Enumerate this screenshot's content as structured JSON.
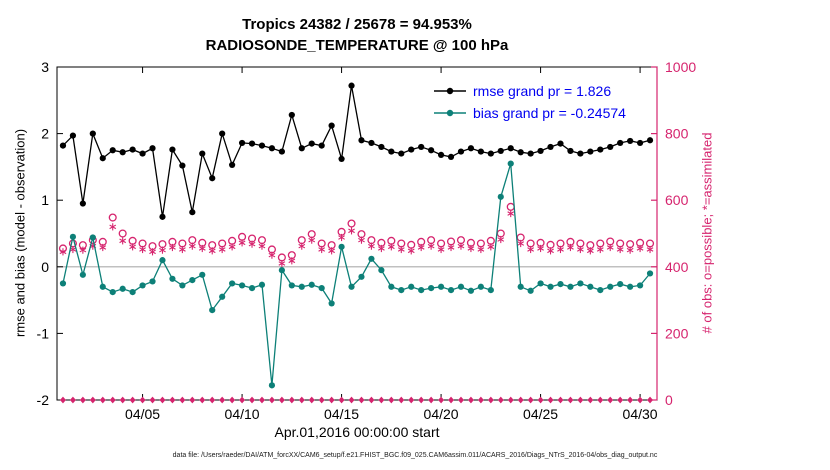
{
  "footer": {
    "text": "data file: /Users/raeder/DAI/ATM_forcXX/CAM6_setup/f.e21.FHIST_BGC.f09_025.CAM6assim.011/ACARS_2016/Diags_NTrS_2016-04/obs_diag_output.nc"
  },
  "chart_data": {
    "type": "line",
    "title": "Tropics 24382 / 25678 = 94.953%",
    "subtitle": "RADIOSONDE_TEMPERATURE @ 100 hPa",
    "xlabel": "Apr.01,2016 00:00:00 start",
    "ylabel_left": "rmse and bias (model - observation)",
    "ylabel_right": "# of obs: o=possible; *=assimilated",
    "xlim": [
      0.7,
      30.85
    ],
    "ylim_left": [
      -2,
      3
    ],
    "ylim_right": [
      0,
      1000
    ],
    "grid": false,
    "zero_line": true,
    "x_ticks": [
      {
        "value": 5,
        "label": "04/05"
      },
      {
        "value": 10,
        "label": "04/10"
      },
      {
        "value": 15,
        "label": "04/15"
      },
      {
        "value": 20,
        "label": "04/20"
      },
      {
        "value": 25,
        "label": "04/25"
      },
      {
        "value": 30,
        "label": "04/30"
      }
    ],
    "yl_ticks": [
      -2,
      -1,
      0,
      1,
      2,
      3
    ],
    "yr_ticks": [
      0,
      200,
      400,
      600,
      800,
      1000
    ],
    "colors": {
      "rmse": "#000000",
      "bias": "#0d8078",
      "obs": "#d6246e",
      "legend_text": "#0000f0",
      "zero_line": "#ababab"
    },
    "x": [
      1,
      1.5,
      2,
      2.5,
      3,
      3.5,
      4,
      4.5,
      5,
      5.5,
      6,
      6.5,
      7,
      7.5,
      8,
      8.5,
      9,
      9.5,
      10,
      10.5,
      11,
      11.5,
      12,
      12.5,
      13,
      13.5,
      14,
      14.5,
      15,
      15.5,
      16,
      16.5,
      17,
      17.5,
      18,
      18.5,
      19,
      19.5,
      20,
      20.5,
      21,
      21.5,
      22,
      22.5,
      23,
      23.5,
      24,
      24.5,
      25,
      25.5,
      26,
      26.5,
      27,
      27.5,
      28,
      28.5,
      29,
      29.5,
      30,
      30.5
    ],
    "series": [
      {
        "name": "obs_baseline_zero",
        "axis": "right",
        "color": "#d6246e",
        "marker": "diamond",
        "line": false,
        "values": [
          0,
          0,
          0,
          0,
          0,
          0,
          0,
          0,
          0,
          0,
          0,
          0,
          0,
          0,
          0,
          0,
          0,
          0,
          0,
          0,
          0,
          0,
          0,
          0,
          0,
          0,
          0,
          0,
          0,
          0,
          0,
          0,
          0,
          0,
          0,
          0,
          0,
          0,
          0,
          0,
          0,
          0,
          0,
          0,
          0,
          0,
          0,
          0,
          0,
          0,
          0,
          0,
          0,
          0,
          0,
          0,
          0,
          0,
          0,
          0
        ]
      },
      {
        "name": "obs_possible",
        "axis": "right",
        "color": "#d6246e",
        "marker": "open-circle",
        "line": false,
        "values": [
          455,
          470,
          465,
          480,
          475,
          548,
          500,
          478,
          470,
          462,
          468,
          475,
          470,
          480,
          472,
          465,
          470,
          478,
          490,
          485,
          480,
          452,
          428,
          435,
          480,
          498,
          470,
          465,
          505,
          530,
          498,
          480,
          472,
          478,
          470,
          466,
          475,
          480,
          470,
          476,
          480,
          472,
          470,
          478,
          500,
          580,
          488,
          470,
          472,
          466,
          470,
          475,
          470,
          465,
          470,
          476,
          470,
          468,
          472,
          470
        ]
      },
      {
        "name": "obs_assimilated",
        "axis": "right",
        "color": "#d6246e",
        "marker": "asterisk",
        "line": false,
        "values": [
          445,
          452,
          450,
          462,
          458,
          520,
          478,
          460,
          452,
          445,
          450,
          458,
          452,
          462,
          455,
          448,
          452,
          460,
          472,
          468,
          462,
          435,
          410,
          418,
          462,
          480,
          452,
          448,
          488,
          508,
          480,
          462,
          455,
          460,
          452,
          448,
          458,
          462,
          452,
          458,
          462,
          455,
          452,
          460,
          482,
          560,
          470,
          452,
          455,
          448,
          452,
          458,
          452,
          448,
          452,
          458,
          452,
          450,
          455,
          452
        ]
      },
      {
        "name": "bias",
        "axis": "left",
        "color": "#0d8078",
        "marker": "filled-circle",
        "line": true,
        "values": [
          -0.25,
          0.45,
          -0.12,
          0.44,
          -0.3,
          -0.38,
          -0.33,
          -0.38,
          -0.28,
          -0.22,
          0.1,
          -0.18,
          -0.28,
          -0.2,
          -0.12,
          -0.65,
          -0.45,
          -0.25,
          -0.28,
          -0.32,
          -0.27,
          -1.78,
          -0.05,
          -0.28,
          -0.3,
          -0.27,
          -0.32,
          -0.55,
          0.3,
          -0.3,
          -0.15,
          0.12,
          -0.05,
          -0.3,
          -0.35,
          -0.3,
          -0.35,
          -0.32,
          -0.3,
          -0.35,
          -0.3,
          -0.36,
          -0.3,
          -0.35,
          1.05,
          1.55,
          -0.3,
          -0.36,
          -0.25,
          -0.3,
          -0.26,
          -0.3,
          -0.25,
          -0.3,
          -0.35,
          -0.3,
          -0.26,
          -0.3,
          -0.28,
          -0.1
        ]
      },
      {
        "name": "rmse",
        "axis": "left",
        "color": "#000000",
        "marker": "filled-circle",
        "line": true,
        "values": [
          1.82,
          1.97,
          0.95,
          2.0,
          1.63,
          1.75,
          1.72,
          1.76,
          1.7,
          1.78,
          0.75,
          1.76,
          1.52,
          0.82,
          1.7,
          1.33,
          2.0,
          1.53,
          1.86,
          1.85,
          1.82,
          1.78,
          1.73,
          2.28,
          1.78,
          1.85,
          1.82,
          2.12,
          1.62,
          2.72,
          1.9,
          1.86,
          1.8,
          1.73,
          1.7,
          1.76,
          1.8,
          1.75,
          1.68,
          1.65,
          1.73,
          1.78,
          1.73,
          1.7,
          1.74,
          1.78,
          1.72,
          1.7,
          1.74,
          1.8,
          1.85,
          1.74,
          1.7,
          1.73,
          1.76,
          1.8,
          1.86,
          1.89,
          1.86,
          1.9
        ]
      }
    ],
    "legend": [
      {
        "label": "rmse grand pr = 1.826",
        "series": "rmse"
      },
      {
        "label": "bias grand pr = -0.24574",
        "series": "bias"
      }
    ]
  }
}
